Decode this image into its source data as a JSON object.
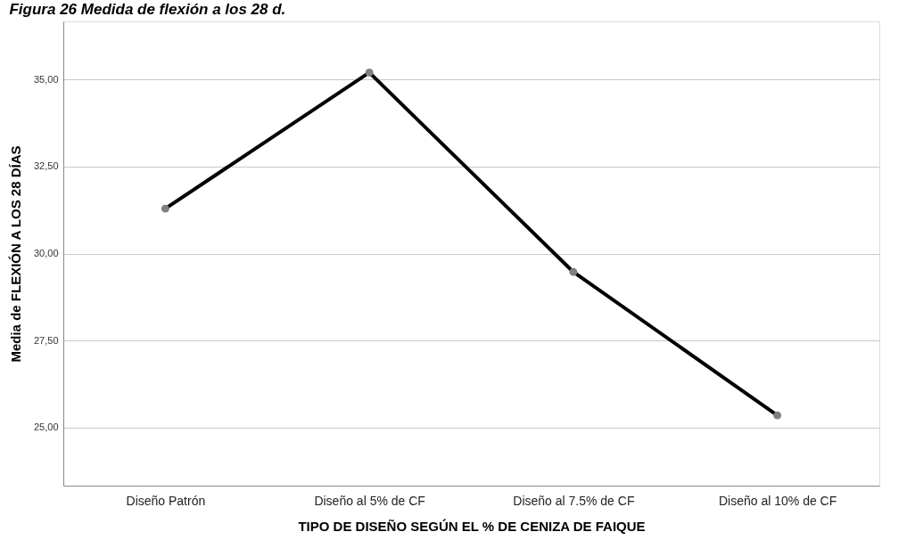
{
  "chart_data": {
    "type": "line",
    "title": "Figura 26 Medida de flexión a los 28 d.",
    "xlabel": "TIPO DE DISEÑO SEGÚN EL % DE CENIZA DE FAIQUE",
    "ylabel": "Media de FLEXIÓN A LOS 28 DÍAS",
    "categories": [
      "Diseño Patrón",
      "Diseño al 5% de CF",
      "Diseño al 7.5% de CF",
      "Diseño al 10% de CF"
    ],
    "series": [
      {
        "color": "#000000",
        "values": [
          31.29,
          35.2,
          29.47,
          25.35
        ]
      }
    ],
    "ylim": [
      23.33,
      36.67
    ],
    "yticks": [
      {
        "value": 25,
        "label": "25,00"
      },
      {
        "value": 27.5,
        "label": "27,50"
      },
      {
        "value": 30,
        "label": "30,00"
      },
      {
        "value": 32.5,
        "label": "32,50"
      },
      {
        "value": 35,
        "label": "35,00"
      }
    ],
    "grid": "y",
    "marker": "circle",
    "line_style": "solid"
  }
}
